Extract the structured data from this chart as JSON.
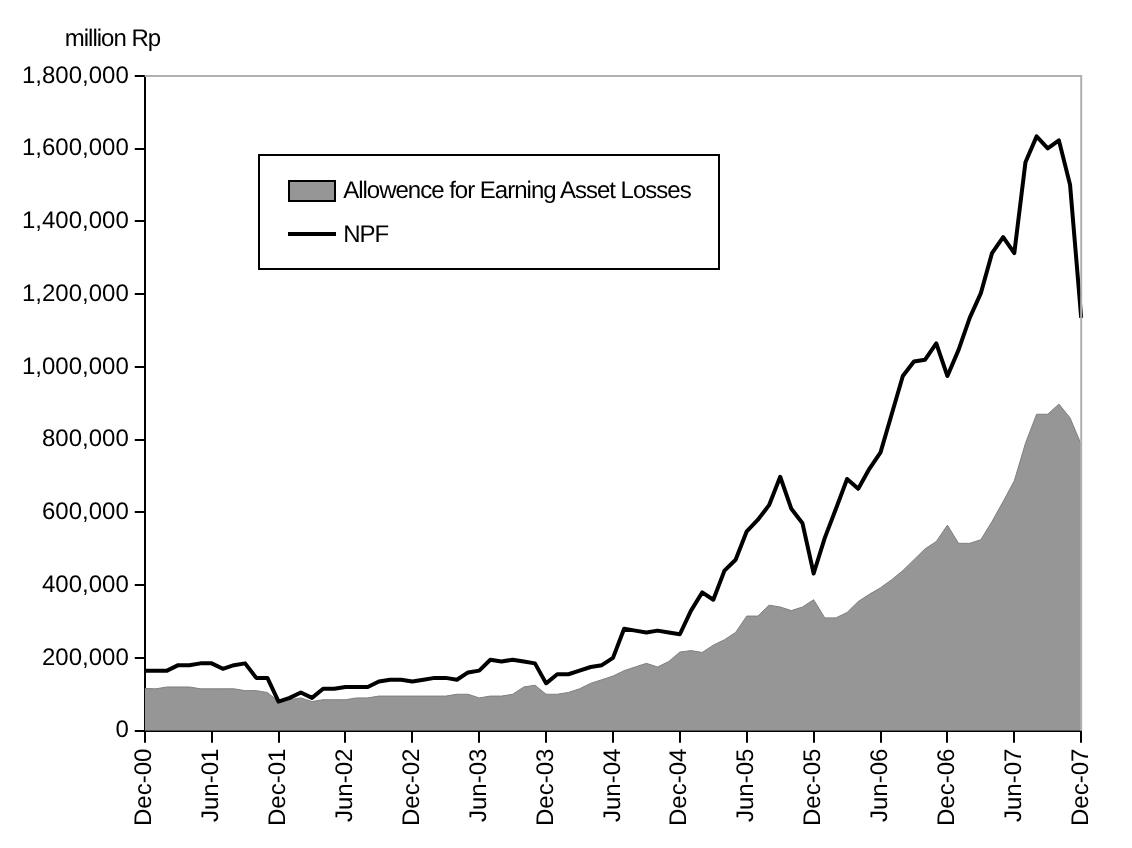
{
  "chart_data": {
    "type": "area",
    "ylabel": "million Rp",
    "categories": [
      "Dec-00",
      null,
      null,
      null,
      null,
      null,
      "Jun-01",
      null,
      null,
      null,
      null,
      null,
      "Dec-01",
      null,
      null,
      null,
      null,
      null,
      "Jun-02",
      null,
      null,
      null,
      null,
      null,
      "Dec-02",
      null,
      null,
      null,
      null,
      null,
      "Jun-03",
      null,
      null,
      null,
      null,
      null,
      "Dec-03",
      null,
      null,
      null,
      null,
      null,
      "Jun-04",
      null,
      null,
      null,
      null,
      null,
      "Dec-04",
      null,
      null,
      null,
      null,
      null,
      "Jun-05",
      null,
      null,
      null,
      null,
      null,
      "Dec-05",
      null,
      null,
      null,
      null,
      null,
      "Jun-06",
      null,
      null,
      null,
      null,
      null,
      "Dec-06",
      null,
      null,
      null,
      null,
      null,
      "Jun-07",
      null,
      null,
      null,
      null,
      null,
      "Dec-07"
    ],
    "series": [
      {
        "name": "Allowence for Earning Asset Losses",
        "color": "#969696",
        "values": [
          116000,
          115000,
          120000,
          120000,
          120000,
          115000,
          115000,
          115000,
          115000,
          110000,
          110000,
          105000,
          80000,
          85000,
          90000,
          80000,
          85000,
          85000,
          85000,
          90000,
          90000,
          95000,
          95000,
          95000,
          95000,
          95000,
          95000,
          95000,
          100000,
          100000,
          90000,
          95000,
          95000,
          100000,
          120000,
          125000,
          100000,
          100000,
          105000,
          115000,
          130000,
          140000,
          150000,
          165000,
          175000,
          185000,
          175000,
          190000,
          216000,
          220000,
          215000,
          235000,
          250000,
          270000,
          315000,
          315000,
          345000,
          340000,
          330000,
          340000,
          360000,
          310000,
          310000,
          325000,
          355000,
          375000,
          393000,
          415000,
          440000,
          470000,
          500000,
          520000,
          565000,
          515000,
          515000,
          525000,
          575000,
          630000,
          687000,
          790000,
          870000,
          870000,
          898000,
          860000,
          787000
        ]
      },
      {
        "name": "NPF",
        "type": "line",
        "color": "#000000",
        "values": [
          165000,
          165000,
          165000,
          180000,
          180000,
          185000,
          185000,
          170000,
          180000,
          185000,
          145000,
          145000,
          80000,
          90000,
          105000,
          90000,
          115000,
          115000,
          120000,
          120000,
          120000,
          135000,
          140000,
          140000,
          135000,
          140000,
          145000,
          145000,
          140000,
          160000,
          165000,
          195000,
          190000,
          195000,
          190000,
          185000,
          130000,
          155000,
          155000,
          165000,
          175000,
          180000,
          200000,
          280000,
          275000,
          270000,
          275000,
          270000,
          265000,
          330000,
          380000,
          360000,
          440000,
          470000,
          548000,
          580000,
          620000,
          698000,
          610000,
          570000,
          432000,
          530000,
          610000,
          692000,
          665000,
          720000,
          765000,
          870000,
          975000,
          1015000,
          1020000,
          1065000,
          975000,
          1047000,
          1135000,
          1203000,
          1313000,
          1357000,
          1313000,
          1563000,
          1634000,
          1601000,
          1623000,
          1501000,
          1135000
        ]
      }
    ],
    "ylim": [
      0,
      1800000
    ],
    "yticks": [
      {
        "value": 0,
        "label": "0"
      },
      {
        "value": 200000,
        "label": "200,000"
      },
      {
        "value": 400000,
        "label": "400,000"
      },
      {
        "value": 600000,
        "label": "600,000"
      },
      {
        "value": 800000,
        "label": "800,000"
      },
      {
        "value": 1000000,
        "label": "1,000,000"
      },
      {
        "value": 1200000,
        "label": "1,200,000"
      },
      {
        "value": 1400000,
        "label": "1,400,000"
      },
      {
        "value": 1600000,
        "label": "1,600,000"
      },
      {
        "value": 1800000,
        "label": "1,800,000"
      }
    ],
    "grid": false,
    "legend": "top left"
  }
}
